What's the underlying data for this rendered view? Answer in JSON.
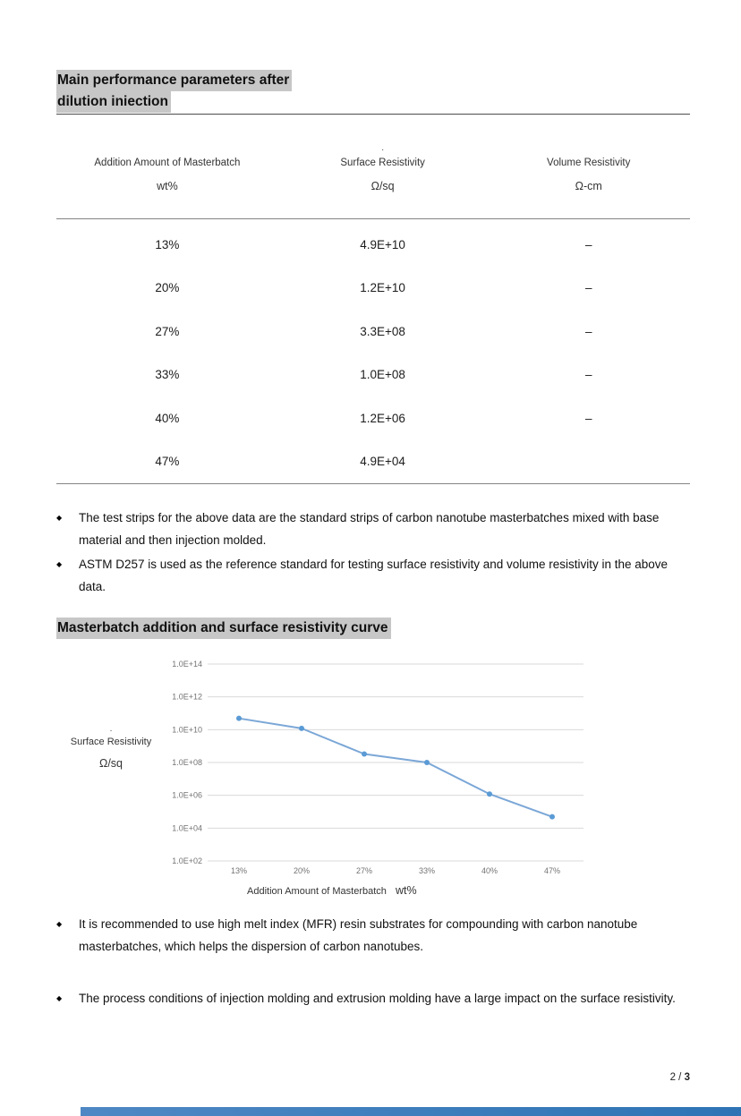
{
  "glyphs": {
    "bullet": "◆",
    "footnote_mark": "·"
  },
  "colors": {
    "highlight": "#c7c7c7",
    "footer_bar_left": "#4e88c4",
    "footer_bar_right": "#2e74b5"
  },
  "section1": {
    "title_line1": "Main performance parameters after",
    "title_line2": "dilution iniection"
  },
  "table": {
    "headers": [
      {
        "label": "Addition Amount of Masterbatch",
        "unit": "wt%"
      },
      {
        "label": "Surface Resistivity",
        "unit": "Ω/sq"
      },
      {
        "label": "Volume Resistivity",
        "unit": "Ω-cm"
      }
    ],
    "rows": [
      [
        "13%",
        "4.9E+10",
        "–"
      ],
      [
        "20%",
        "1.2E+10",
        "–"
      ],
      [
        "27%",
        "3.3E+08",
        "–"
      ],
      [
        "33%",
        "1.0E+08",
        "–"
      ],
      [
        "40%",
        "1.2E+06",
        "–"
      ],
      [
        "47%",
        "4.9E+04",
        ""
      ]
    ]
  },
  "notes1": [
    "The test strips for the above data are the standard strips of carbon nanotube masterbatches mixed with base material and then injection molded.",
    "ASTM D257 is used as the reference standard for testing surface resistivity and volume resistivity in the above data."
  ],
  "section2": {
    "title": "Masterbatch addition and surface resistivity curve"
  },
  "chart_data": {
    "type": "line",
    "title": "Masterbatch addition and surface resistivity curve",
    "categories": [
      "13%",
      "20%",
      "27%",
      "33%",
      "40%",
      "47%"
    ],
    "values": [
      49000000000.0,
      12000000000.0,
      330000000.0,
      100000000.0,
      1200000.0,
      49000.0
    ],
    "y_scale": "log",
    "ylim_log": [
      2,
      14
    ],
    "y_ticks": [
      "1.0E+14",
      "1.0E+12",
      "1.0E+10",
      "1.0E+08",
      "1.0E+06",
      "1.0E+04",
      "1.0E+02"
    ],
    "ylabel_line1": "Surface Resistivity",
    "ylabel_line2": "Ω/sq",
    "xlabel": "Addition Amount of Masterbatch",
    "xlabel_unit": "wt%",
    "grid_on": true,
    "legend": "none",
    "grid_color": "#d9d9d9",
    "tick_color": "#737373",
    "line_color": "#7ba7d7",
    "marker_color": "#5b9bd5"
  },
  "notes2": [
    "It is recommended to use high melt index (MFR) resin substrates for compounding with carbon nanotube masterbatches, which helps the dispersion of carbon nanotubes.",
    "The process conditions of injection molding and extrusion molding have a large impact on the surface resistivity."
  ],
  "footer": {
    "page_prefix": "2 /",
    "page_current_bold": "3"
  }
}
